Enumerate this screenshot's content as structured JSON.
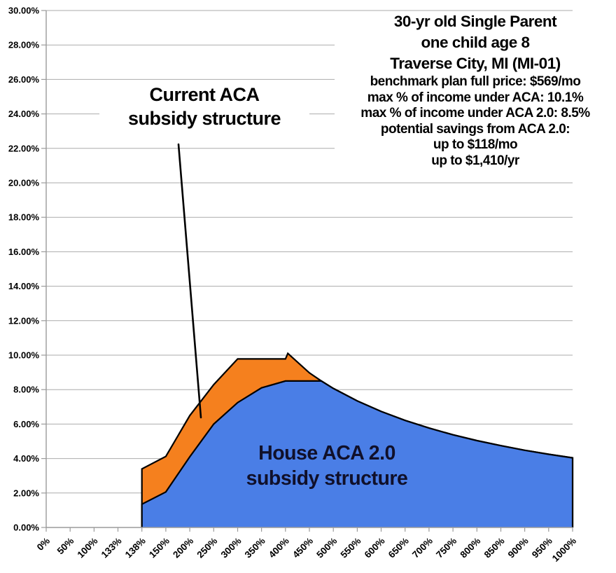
{
  "colors": {
    "orange": "#F5801E",
    "blue": "#4A7EE6",
    "outline": "#000000",
    "grid": "#ABABAB",
    "axis": "#9B9B9B",
    "leader_line": "#000000",
    "text": "#000000",
    "house_label_text": "#10102a"
  },
  "annotations": {
    "current_aca": {
      "line1": "Current ACA",
      "line2": "subsidy structure"
    },
    "house_aca": {
      "line1": "House ACA 2.0",
      "line2": "subsidy structure"
    },
    "info": {
      "lines": [
        "30-yr old Single Parent",
        "one child age 8",
        "Traverse City, MI (MI-01)",
        "benchmark plan full price: $569/mo",
        "max % of income under ACA: 10.1%",
        "max % of income under ACA 2.0: 8.5%",
        "potential savings from ACA 2.0:",
        "up to $118/mo",
        "up to $1,410/yr"
      ]
    }
  },
  "chart_data": {
    "type": "area",
    "title": "",
    "xlabel": "",
    "ylabel": "",
    "grid": true,
    "ylim": [
      0,
      30
    ],
    "ytick_step": 2,
    "ytick_labels": [
      "0.00%",
      "2.00%",
      "4.00%",
      "6.00%",
      "8.00%",
      "10.00%",
      "12.00%",
      "14.00%",
      "16.00%",
      "18.00%",
      "20.00%",
      "22.00%",
      "24.00%",
      "26.00%",
      "28.00%",
      "30.00%"
    ],
    "categories": [
      "0%",
      "50%",
      "100%",
      "133%",
      "138%",
      "150%",
      "200%",
      "250%",
      "300%",
      "350%",
      "400%",
      "450%",
      "500%",
      "550%",
      "600%",
      "650%",
      "700%",
      "750%",
      "800%",
      "850%",
      "900%",
      "950%",
      "1000%"
    ],
    "category_values": [
      0,
      50,
      100,
      133,
      138,
      150,
      200,
      250,
      300,
      350,
      400,
      450,
      500,
      550,
      600,
      650,
      700,
      750,
      800,
      850,
      900,
      950,
      1000
    ],
    "series": [
      {
        "name": "Current ACA subsidy structure",
        "key": "current-aca",
        "color_ref": "orange",
        "points": [
          [
            138,
            3.4
          ],
          [
            150,
            4.12
          ],
          [
            200,
            6.49
          ],
          [
            250,
            8.29
          ],
          [
            300,
            9.78
          ],
          [
            350,
            9.78
          ],
          [
            400,
            9.78
          ],
          [
            405,
            10.1
          ],
          [
            450,
            8.97
          ],
          [
            475,
            8.5
          ],
          [
            500,
            8.07
          ],
          [
            550,
            7.34
          ],
          [
            600,
            6.73
          ],
          [
            650,
            6.21
          ],
          [
            700,
            5.77
          ],
          [
            750,
            5.38
          ],
          [
            800,
            5.04
          ],
          [
            850,
            4.75
          ],
          [
            900,
            4.48
          ],
          [
            950,
            4.25
          ],
          [
            1000,
            4.04
          ]
        ]
      },
      {
        "name": "House ACA 2.0 subsidy structure",
        "key": "house-aca-2-0",
        "color_ref": "blue",
        "points": [
          [
            138,
            1.35
          ],
          [
            150,
            2.06
          ],
          [
            200,
            4.1
          ],
          [
            250,
            6.0
          ],
          [
            300,
            7.25
          ],
          [
            350,
            8.1
          ],
          [
            400,
            8.5
          ],
          [
            450,
            8.5
          ],
          [
            475,
            8.5
          ],
          [
            500,
            8.07
          ],
          [
            550,
            7.34
          ],
          [
            600,
            6.73
          ],
          [
            650,
            6.21
          ],
          [
            700,
            5.77
          ],
          [
            750,
            5.38
          ],
          [
            800,
            5.04
          ],
          [
            850,
            4.75
          ],
          [
            900,
            4.48
          ],
          [
            950,
            4.25
          ],
          [
            1000,
            4.04
          ]
        ]
      }
    ]
  }
}
